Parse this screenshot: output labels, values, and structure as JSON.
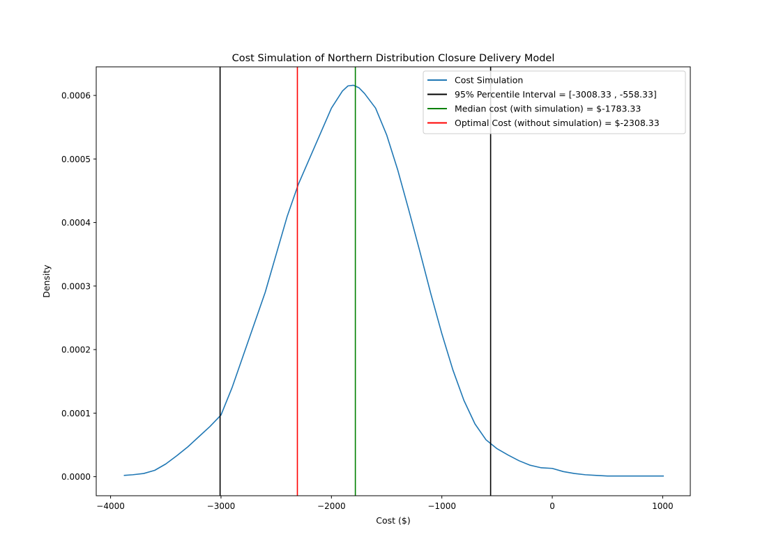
{
  "chart_data": {
    "type": "line",
    "title": "Cost Simulation of Northern Distribution Closure Delivery Model",
    "xlabel": "Cost ($)",
    "ylabel": "Density",
    "xlim": [
      -4130,
      1250
    ],
    "ylim": [
      -3e-05,
      0.000645
    ],
    "x_ticks": [
      -4000,
      -3000,
      -2000,
      -1000,
      0,
      1000
    ],
    "x_tick_labels": [
      "−4000",
      "−3000",
      "−2000",
      "−1000",
      "0",
      "1000"
    ],
    "y_ticks": [
      0,
      0.0001,
      0.0002,
      0.0003,
      0.0004,
      0.0005,
      0.0006
    ],
    "y_tick_labels": [
      "0.0000",
      "0.0001",
      "0.0002",
      "0.0003",
      "0.0004",
      "0.0005",
      "0.0006"
    ],
    "grid": false,
    "legend_position": "upper right",
    "series": [
      {
        "name": "Cost Simulation",
        "color": "#1f77b4",
        "x": [
          -3880,
          -3800,
          -3700,
          -3600,
          -3500,
          -3400,
          -3300,
          -3200,
          -3100,
          -3000,
          -2900,
          -2800,
          -2700,
          -2600,
          -2500,
          -2400,
          -2300,
          -2200,
          -2100,
          -2000,
          -1900,
          -1850,
          -1800,
          -1750,
          -1700,
          -1600,
          -1500,
          -1400,
          -1300,
          -1200,
          -1100,
          -1000,
          -900,
          -800,
          -700,
          -600,
          -500,
          -400,
          -300,
          -200,
          -100,
          0,
          100,
          200,
          300,
          400,
          500,
          600,
          700,
          800,
          900,
          1010
        ],
        "y": [
          2e-06,
          3e-06,
          5e-06,
          1e-05,
          2e-05,
          3.3e-05,
          4.7e-05,
          6.3e-05,
          7.9e-05,
          9.7e-05,
          0.00014,
          0.00019,
          0.00024,
          0.00029,
          0.00035,
          0.00041,
          0.00046,
          0.0005,
          0.00054,
          0.00058,
          0.000607,
          0.000615,
          0.000616,
          0.000612,
          0.000603,
          0.00058,
          0.000538,
          0.000483,
          0.00042,
          0.000355,
          0.000288,
          0.000225,
          0.000168,
          0.00012,
          8.3e-05,
          5.8e-05,
          4.4e-05,
          3.4e-05,
          2.5e-05,
          1.8e-05,
          1.4e-05,
          1.3e-05,
          8e-06,
          5e-06,
          3e-06,
          2e-06,
          1e-06,
          1e-06,
          1e-06,
          1e-06,
          1e-06,
          1e-06
        ]
      }
    ],
    "vlines": [
      {
        "name": "95% Percentile Interval = [-3008.33 , -558.33]",
        "color": "#000000",
        "x": [
          -3008.33,
          -558.33
        ]
      },
      {
        "name": "Median cost (with simulation) = $-1783.33",
        "color": "#008000",
        "x": [
          -1783.33
        ]
      },
      {
        "name": "Optimal Cost (without simulation) = $-2308.33",
        "color": "#ff0000",
        "x": [
          -2308.33
        ]
      }
    ]
  }
}
